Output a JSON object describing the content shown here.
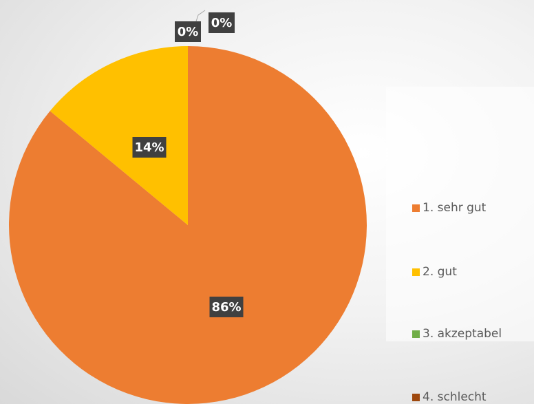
{
  "chart_data": {
    "type": "pie",
    "categories": [
      "1. sehr gut",
      "2. gut",
      "3. akzeptabel",
      "4. schlecht"
    ],
    "values": [
      86,
      14,
      0,
      0
    ],
    "data_labels": [
      "86%",
      "14%",
      "0%",
      "0%"
    ],
    "colors": [
      "#ED7D31",
      "#FFC000",
      "#70AD47",
      "#9E480E"
    ],
    "title": "",
    "legend_position": "right"
  }
}
